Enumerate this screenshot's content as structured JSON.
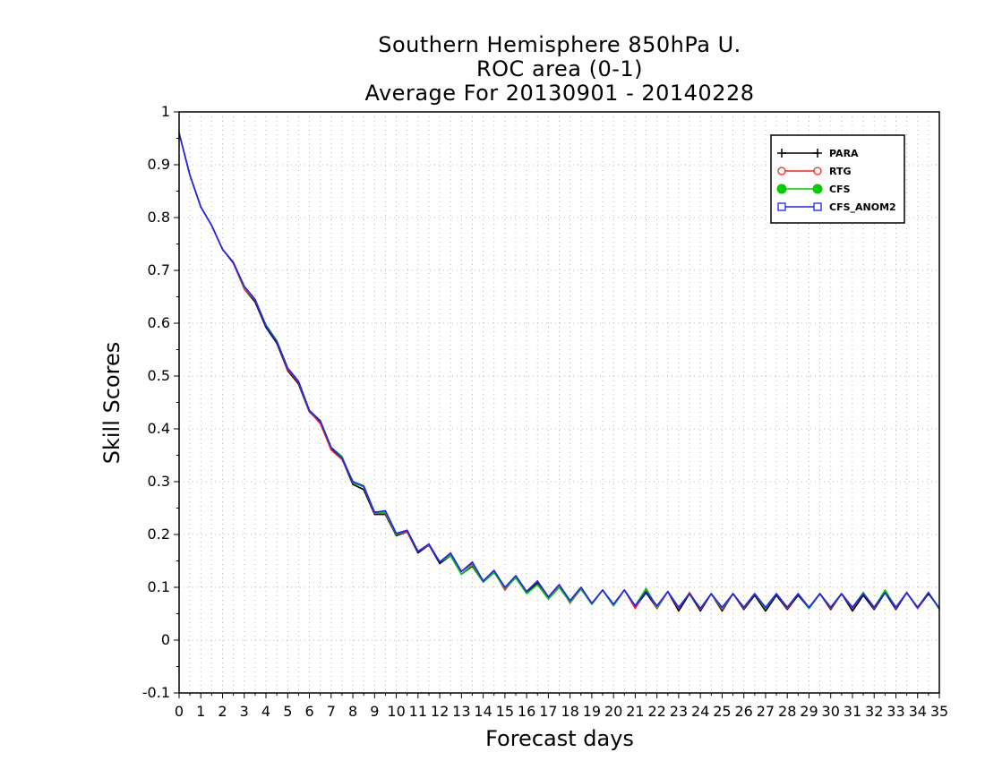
{
  "chart_data": {
    "type": "line",
    "title": [
      "Southern Hemisphere 850hPa U.",
      "ROC area (0-1)",
      "Average For 20130901 - 20140228"
    ],
    "xlabel": "Forecast days",
    "ylabel": "Skill Scores",
    "xlim": [
      0,
      35
    ],
    "ylim": [
      -0.1,
      1
    ],
    "x_ticks": [
      0,
      1,
      2,
      3,
      4,
      5,
      6,
      7,
      8,
      9,
      10,
      11,
      12,
      13,
      14,
      15,
      16,
      17,
      18,
      19,
      20,
      21,
      22,
      23,
      24,
      25,
      26,
      27,
      28,
      29,
      30,
      31,
      32,
      33,
      34,
      35
    ],
    "y_ticks": [
      -0.1,
      0,
      0.1,
      0.2,
      0.3,
      0.4,
      0.5,
      0.6,
      0.7,
      0.8,
      0.9,
      1
    ],
    "y_tick_labels": [
      "-0.1",
      "0",
      "0.1",
      "0.2",
      "0.3",
      "0.4",
      "0.5",
      "0.6",
      "0.7",
      "0.8",
      "0.9",
      "1"
    ],
    "grid": true,
    "legend_position": "top-right",
    "x": [
      0,
      0.5,
      1,
      1.5,
      2,
      2.5,
      3,
      3.5,
      4,
      4.5,
      5,
      5.5,
      6,
      6.5,
      7,
      7.5,
      8,
      8.5,
      9,
      9.5,
      10,
      10.5,
      11,
      11.5,
      12,
      12.5,
      13,
      13.5,
      14,
      14.5,
      15,
      15.5,
      16,
      16.5,
      17,
      17.5,
      18,
      18.5,
      19,
      19.5,
      20,
      20.5,
      21,
      21.5,
      22,
      22.5,
      23,
      23.5,
      24,
      24.5,
      25,
      25.5,
      26,
      26.5,
      27,
      27.5,
      28,
      28.5,
      29,
      29.5,
      30,
      30.5,
      31,
      31.5,
      32,
      32.5,
      33,
      33.5,
      34,
      34.5,
      35
    ],
    "series": [
      {
        "name": "PARA",
        "color": "#000000",
        "marker": "plus",
        "values": [
          0.96,
          0.88,
          0.82,
          0.785,
          0.74,
          0.715,
          0.665,
          0.64,
          0.592,
          0.562,
          0.51,
          0.485,
          0.432,
          0.412,
          0.362,
          0.343,
          0.295,
          0.285,
          0.238,
          0.238,
          0.198,
          0.205,
          0.165,
          0.18,
          0.145,
          0.16,
          0.125,
          0.14,
          0.11,
          0.128,
          0.1,
          0.118,
          0.09,
          0.108,
          0.078,
          0.1,
          0.072,
          0.098,
          0.068,
          0.095,
          0.065,
          0.095,
          0.062,
          0.09,
          0.06,
          0.092,
          0.055,
          0.088,
          0.055,
          0.088,
          0.055,
          0.088,
          0.058,
          0.085,
          0.055,
          0.085,
          0.058,
          0.085,
          0.06,
          0.088,
          0.058,
          0.088,
          0.055,
          0.085,
          0.058,
          0.09,
          0.058,
          0.09,
          0.06,
          0.088,
          0.06
        ]
      },
      {
        "name": "RTG",
        "color": "#ff2020",
        "marker": "open-circle",
        "values": [
          0.96,
          0.88,
          0.82,
          0.785,
          0.74,
          0.713,
          0.665,
          0.643,
          0.595,
          0.565,
          0.512,
          0.488,
          0.433,
          0.41,
          0.36,
          0.342,
          0.3,
          0.29,
          0.24,
          0.24,
          0.2,
          0.205,
          0.168,
          0.18,
          0.148,
          0.162,
          0.13,
          0.145,
          0.11,
          0.13,
          0.095,
          0.12,
          0.092,
          0.112,
          0.08,
          0.105,
          0.07,
          0.097,
          0.068,
          0.095,
          0.065,
          0.095,
          0.06,
          0.095,
          0.06,
          0.092,
          0.06,
          0.09,
          0.058,
          0.088,
          0.058,
          0.088,
          0.06,
          0.088,
          0.06,
          0.088,
          0.06,
          0.088,
          0.06,
          0.088,
          0.06,
          0.088,
          0.06,
          0.09,
          0.06,
          0.092,
          0.06,
          0.09,
          0.06,
          0.09,
          0.06
        ]
      },
      {
        "name": "CFS",
        "color": "#00cc00",
        "marker": "filled-circle",
        "values": [
          0.96,
          0.88,
          0.82,
          0.785,
          0.74,
          0.716,
          0.668,
          0.645,
          0.597,
          0.567,
          0.515,
          0.49,
          0.435,
          0.416,
          0.365,
          0.348,
          0.298,
          0.29,
          0.242,
          0.242,
          0.2,
          0.208,
          0.168,
          0.182,
          0.148,
          0.16,
          0.125,
          0.142,
          0.11,
          0.128,
          0.098,
          0.118,
          0.088,
          0.105,
          0.078,
          0.1,
          0.072,
          0.098,
          0.068,
          0.095,
          0.065,
          0.095,
          0.065,
          0.098,
          0.062,
          0.092,
          0.062,
          0.088,
          0.06,
          0.088,
          0.06,
          0.088,
          0.062,
          0.088,
          0.06,
          0.088,
          0.062,
          0.088,
          0.06,
          0.088,
          0.062,
          0.088,
          0.062,
          0.09,
          0.062,
          0.095,
          0.062,
          0.09,
          0.062,
          0.09,
          0.058
        ]
      },
      {
        "name": "CFS_ANOM2",
        "color": "#2020ff",
        "marker": "open-square",
        "values": [
          0.96,
          0.88,
          0.82,
          0.785,
          0.74,
          0.715,
          0.67,
          0.645,
          0.595,
          0.565,
          0.515,
          0.49,
          0.435,
          0.415,
          0.365,
          0.345,
          0.3,
          0.292,
          0.242,
          0.245,
          0.202,
          0.208,
          0.168,
          0.182,
          0.148,
          0.165,
          0.13,
          0.148,
          0.112,
          0.132,
          0.1,
          0.122,
          0.092,
          0.112,
          0.082,
          0.105,
          0.075,
          0.1,
          0.07,
          0.095,
          0.068,
          0.095,
          0.065,
          0.092,
          0.065,
          0.092,
          0.062,
          0.088,
          0.06,
          0.088,
          0.062,
          0.088,
          0.062,
          0.088,
          0.062,
          0.088,
          0.062,
          0.088,
          0.062,
          0.088,
          0.062,
          0.088,
          0.062,
          0.088,
          0.062,
          0.09,
          0.062,
          0.09,
          0.062,
          0.09,
          0.06
        ]
      }
    ]
  }
}
